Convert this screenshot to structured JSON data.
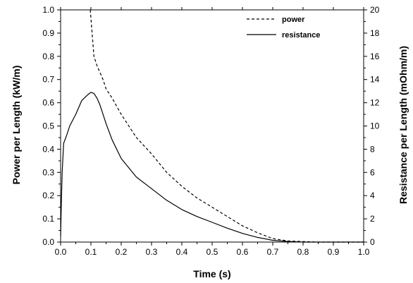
{
  "chart_data": {
    "type": "line",
    "title": "",
    "xlabel": "Time (s)",
    "ylabel": "Power per Length (kW/m)",
    "y2label": "Resistance per Length (mOhm/m)",
    "xlim": [
      0.0,
      1.0
    ],
    "ylim": [
      0.0,
      1.0
    ],
    "y2lim": [
      0,
      20
    ],
    "x_ticks": [
      "0.0",
      "0.1",
      "0.2",
      "0.3",
      "0.4",
      "0.5",
      "0.6",
      "0.7",
      "0.8",
      "0.9",
      "1.0"
    ],
    "y_ticks": [
      "0.0",
      "0.1",
      "0.2",
      "0.3",
      "0.4",
      "0.5",
      "0.6",
      "0.7",
      "0.8",
      "0.9",
      "1.0"
    ],
    "y2_ticks": [
      "0",
      "2",
      "4",
      "6",
      "8",
      "10",
      "12",
      "14",
      "16",
      "18",
      "20"
    ],
    "grid": false,
    "legend_position": "top-right",
    "series": [
      {
        "name": "power",
        "axis": "left",
        "style": "dashed",
        "x": [
          0.098,
          0.105,
          0.11,
          0.12,
          0.13,
          0.14,
          0.15,
          0.17,
          0.2,
          0.25,
          0.3,
          0.35,
          0.4,
          0.45,
          0.5,
          0.55,
          0.6,
          0.65,
          0.7,
          0.75,
          0.8,
          0.85,
          0.9,
          0.95,
          1.0
        ],
        "y": [
          1.0,
          0.88,
          0.8,
          0.76,
          0.73,
          0.7,
          0.66,
          0.62,
          0.55,
          0.45,
          0.38,
          0.3,
          0.24,
          0.19,
          0.15,
          0.11,
          0.07,
          0.04,
          0.015,
          0.005,
          0.002,
          0.0,
          0.0,
          0.0,
          0.0
        ]
      },
      {
        "name": "resistance",
        "axis": "right",
        "style": "solid",
        "x": [
          0.0,
          0.002,
          0.005,
          0.01,
          0.02,
          0.03,
          0.05,
          0.07,
          0.09,
          0.1,
          0.11,
          0.12,
          0.13,
          0.15,
          0.17,
          0.2,
          0.25,
          0.3,
          0.35,
          0.4,
          0.45,
          0.5,
          0.55,
          0.6,
          0.65,
          0.7,
          0.75,
          0.8,
          0.85,
          0.9,
          0.95,
          1.0
        ],
        "y": [
          0.5,
          3.0,
          6.0,
          8.5,
          9.2,
          10.0,
          11.0,
          12.2,
          12.7,
          12.9,
          12.8,
          12.4,
          11.8,
          10.2,
          8.8,
          7.2,
          5.6,
          4.6,
          3.6,
          2.8,
          2.2,
          1.7,
          1.2,
          0.75,
          0.4,
          0.15,
          0.05,
          0.0,
          0.0,
          0.0,
          0.0,
          0.0
        ]
      }
    ]
  }
}
